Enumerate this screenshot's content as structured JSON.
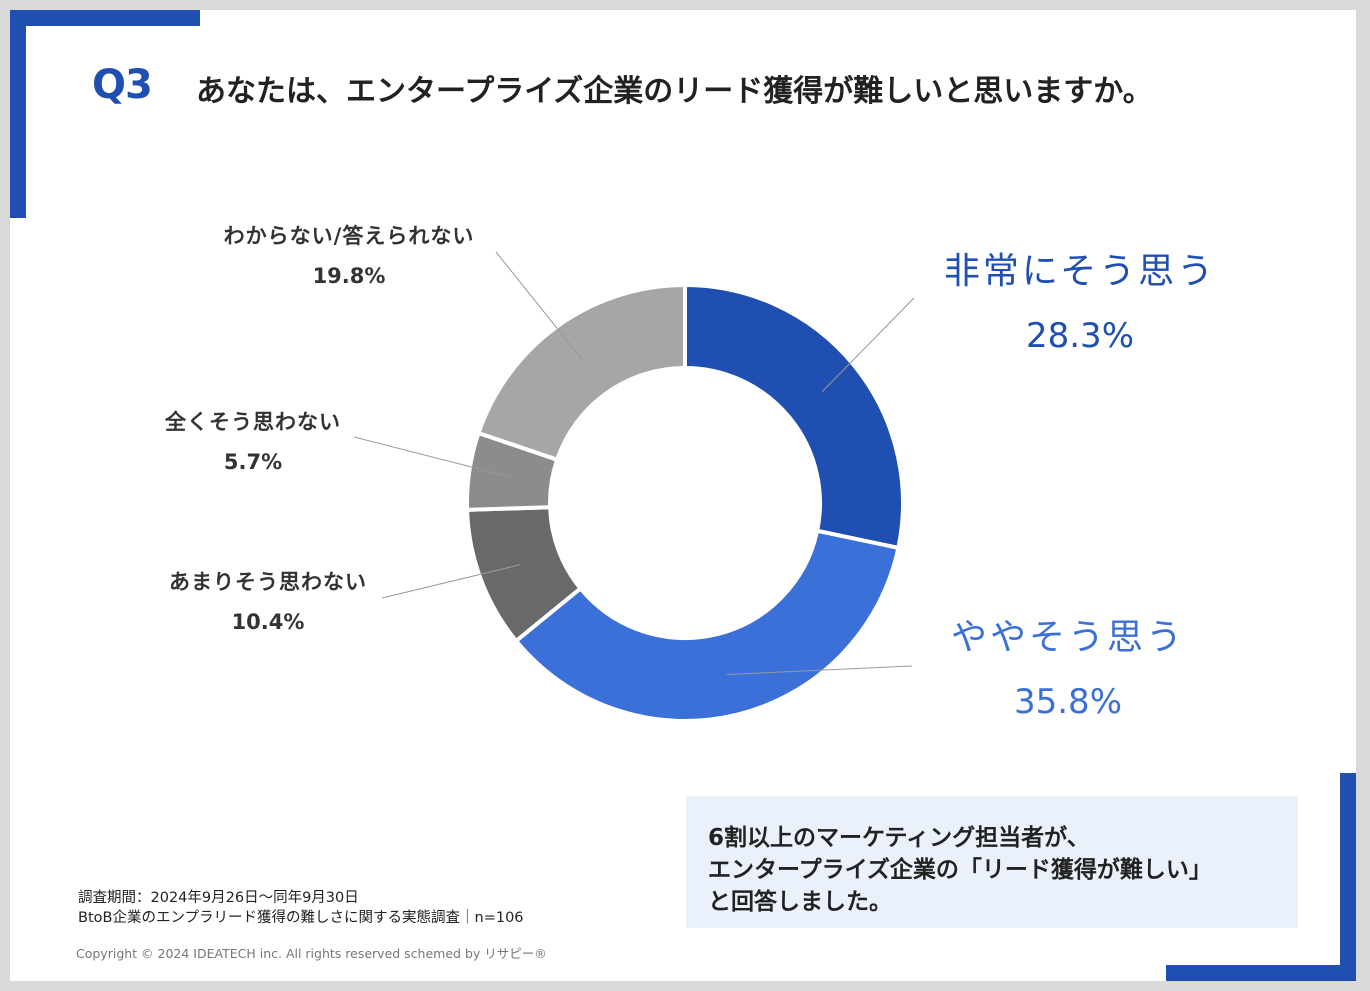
{
  "header": {
    "question_number": "Q3",
    "question_text": "あなたは、エンタープライズ企業のリード獲得が難しいと思いますか。"
  },
  "colors": {
    "accent": "#1e4fb1",
    "slice_very": "#1e4fb1",
    "slice_somewhat": "#3b70d9",
    "slice_not_much": "#696969",
    "slice_not_at_all": "#8c8c8c",
    "slice_unknown": "#a6a6a6",
    "label_blue_dark": "#1e4fb1",
    "label_blue_light": "#3b70d9"
  },
  "chart_data": {
    "type": "pie",
    "variant": "donut",
    "start": "12 o'clock, clockwise",
    "categories": [
      "非常にそう思う",
      "ややそう思う",
      "あまりそう思わない",
      "全くそう思わない",
      "わからない/答えられない"
    ],
    "values": [
      28.3,
      35.8,
      10.4,
      5.7,
      19.8
    ],
    "value_labels": [
      "28.3%",
      "35.8%",
      "10.4%",
      "5.7%",
      "19.8%"
    ],
    "unit": "%",
    "n": 106
  },
  "summary": {
    "line1": "6割以上のマーケティング担当者が、",
    "line2": "エンタープライズ企業の「リード獲得が難しい」",
    "line3": "と回答しました。"
  },
  "footer": {
    "survey_period": "調査期間：2024年9月26日〜同年9月30日",
    "survey_name": "BtoB企業のエンプラリード獲得の難しさに関する実態調査｜n=106",
    "copyright": "Copyright © 2024 IDEATECH inc. All rights reserved schemed by リサピー®"
  }
}
